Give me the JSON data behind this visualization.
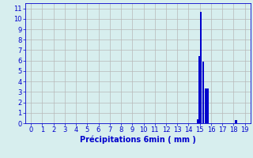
{
  "xlabel": "Précipitations 6min ( mm )",
  "background_color": "#d7eeee",
  "bar_color": "#0000cc",
  "grid_color": "#b8b8b8",
  "xlim": [
    -0.5,
    19.5
  ],
  "ylim": [
    0,
    11.5
  ],
  "xticks": [
    0,
    1,
    2,
    3,
    4,
    5,
    6,
    7,
    8,
    9,
    10,
    11,
    12,
    13,
    14,
    15,
    16,
    17,
    18,
    19
  ],
  "yticks": [
    0,
    1,
    2,
    3,
    4,
    5,
    6,
    7,
    8,
    9,
    10,
    11
  ],
  "bar_positions": [
    14.8,
    15.0,
    15.1,
    15.3,
    15.5,
    15.7,
    18.2
  ],
  "bar_heights": [
    0.35,
    6.4,
    10.7,
    5.9,
    3.3,
    3.3,
    0.3
  ],
  "bar_width": 0.18,
  "tick_fontsize": 6.0,
  "xlabel_fontsize": 7.0
}
